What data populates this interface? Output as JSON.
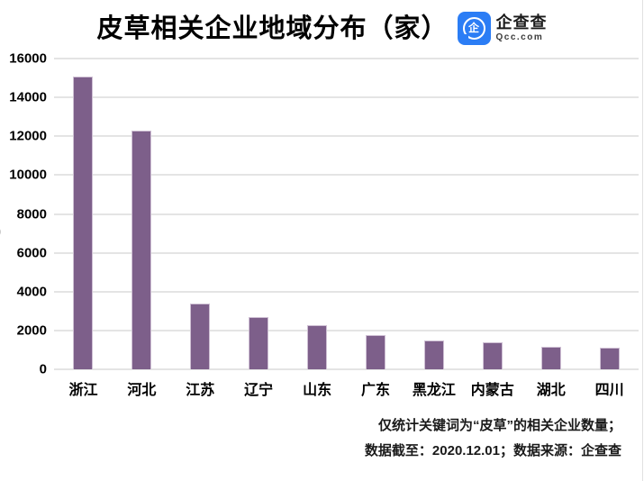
{
  "title": "皮草相关企业地域分布（家）",
  "logo": {
    "name": "企查查",
    "domain": "Qcc.com",
    "icon_char": "企",
    "blue": "#2B7DF5"
  },
  "footnote": {
    "line1": "仅统计关键词为“皮草”的相关企业数量；",
    "line2": "数据截至：2020.12.01；数据来源：企查查"
  },
  "edge_artifact": ")",
  "chart_data": {
    "type": "bar",
    "title": "皮草相关企业地域分布（家）",
    "categories": [
      "浙江",
      "河北",
      "江苏",
      "辽宁",
      "山东",
      "广东",
      "黑龙江",
      "内蒙古",
      "湖北",
      "四川"
    ],
    "values": [
      15050,
      12300,
      3370,
      2710,
      2250,
      1760,
      1480,
      1390,
      1170,
      1100
    ],
    "xlabel": "",
    "ylabel": "",
    "ylim": [
      0,
      16000
    ],
    "ytick_interval": 2000,
    "ytick_labels": [
      "0",
      "2000",
      "4000",
      "6000",
      "8000",
      "10000",
      "12000",
      "14000",
      "16000"
    ],
    "grid": true,
    "legend": "none",
    "bar_color": "#7D5F8A",
    "bar_border_color": "#cfc0d4",
    "gridline_color": "#e4e4e4"
  }
}
